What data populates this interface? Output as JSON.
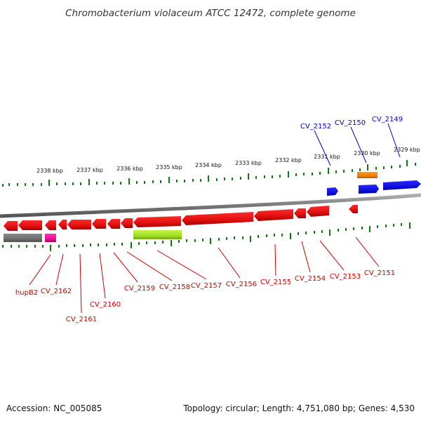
{
  "title": "Chromobacterium violaceum ATCC 12472, complete genome",
  "footer": {
    "accession": "Accession: NC_005085",
    "summary": "Topology: circular; Length: 4,751,080 bp; Genes: 4,530"
  },
  "scale_labels": [
    "2338 kbp",
    "2337 kbp",
    "2336 kbp",
    "2335 kbp",
    "2334 kbp",
    "2333 kbp",
    "2332 kbp",
    "2331 kbp",
    "2330 kbp",
    "2329 kbp"
  ],
  "genes_forward": [
    "CV_2152",
    "CV_2150",
    "CV_2149"
  ],
  "genes_reverse": [
    "hupB2",
    "CV_2162",
    "CV_2161",
    "CV_2160",
    "CV_2159",
    "CV_2158",
    "CV_2157",
    "CV_2156",
    "CV_2155",
    "CV_2154",
    "CV_2153",
    "CV_2151"
  ],
  "colors": {
    "forward_label": "#0000cc",
    "reverse_label": "#cc0000",
    "gene_red": "#ee1111",
    "gene_blue": "#1111ee",
    "gene_orange": "#ee8800",
    "gene_gray": "#777777",
    "gene_magenta": "#ee1199",
    "gene_green": "#99dd22",
    "tick_green": "#117711",
    "backbone": "#888888"
  }
}
